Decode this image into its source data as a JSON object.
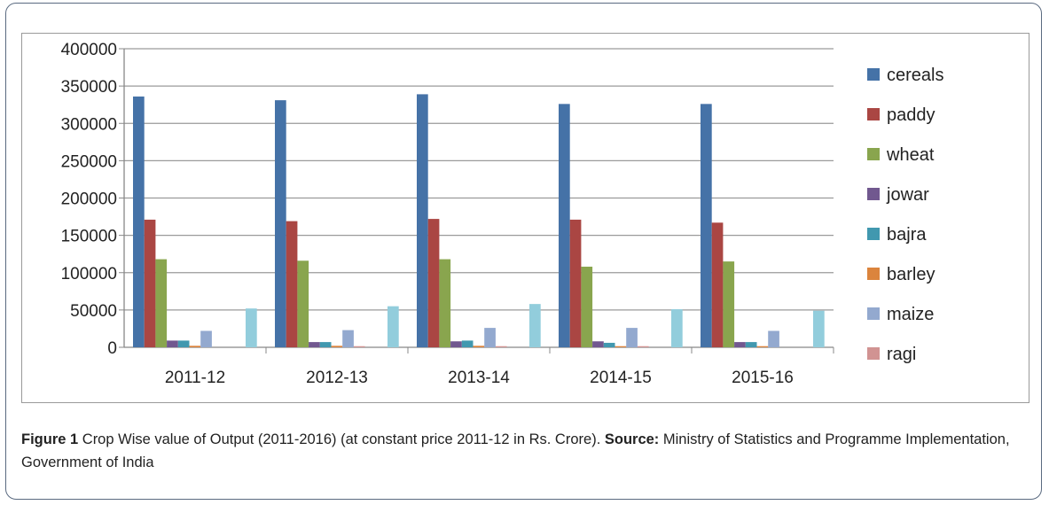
{
  "chart_data": {
    "type": "bar",
    "title": "",
    "xlabel": "",
    "ylabel": "",
    "ylim": [
      0,
      400000
    ],
    "yticks": [
      "0",
      "50000",
      "100000",
      "150000",
      "200000",
      "250000",
      "300000",
      "350000",
      "400000"
    ],
    "grid": true,
    "legend_position": "right",
    "categories": [
      "2011-12",
      "2012-13",
      "2013-14",
      "2014-15",
      "2015-16"
    ],
    "series": [
      {
        "name": "cereals",
        "color": "#4572a7",
        "values": [
          336000,
          331000,
          339000,
          326000,
          326000
        ],
        "in_legend": true
      },
      {
        "name": "paddy",
        "color": "#aa4643",
        "values": [
          171000,
          169000,
          172000,
          171000,
          167000
        ],
        "in_legend": true
      },
      {
        "name": "wheat",
        "color": "#89a54e",
        "values": [
          118000,
          116000,
          118000,
          108000,
          115000
        ],
        "in_legend": true
      },
      {
        "name": "jowar",
        "color": "#71588f",
        "values": [
          9000,
          7000,
          8000,
          8000,
          7000
        ],
        "in_legend": true
      },
      {
        "name": "bajra",
        "color": "#4198af",
        "values": [
          9000,
          7000,
          9000,
          6000,
          7000
        ],
        "in_legend": true
      },
      {
        "name": "barley",
        "color": "#db843d",
        "values": [
          2000,
          2000,
          2000,
          1500,
          1500
        ],
        "in_legend": true
      },
      {
        "name": "maize",
        "color": "#93a9cf",
        "values": [
          22000,
          23000,
          26000,
          26000,
          22000
        ],
        "in_legend": true
      },
      {
        "name": "ragi",
        "color": "#d19392",
        "values": [
          0,
          1500,
          1500,
          1500,
          0
        ],
        "in_legend": true
      },
      {
        "name": null,
        "color": "#b9cd96",
        "values": [
          0,
          0,
          0,
          0,
          0
        ],
        "in_legend": false
      },
      {
        "name": null,
        "color": "#a99bbd",
        "values": [
          0,
          0,
          0,
          0,
          0
        ],
        "in_legend": false
      },
      {
        "name": null,
        "color": "#92cddc",
        "values": [
          52000,
          55000,
          58000,
          51000,
          49000
        ],
        "in_legend": false
      }
    ]
  },
  "caption": {
    "label": "Figure 1",
    "text": " Crop Wise value of Output (2011-2016) (at constant price 2011-12 in Rs. Crore). ",
    "source_label": "Source:",
    "source_text": " Ministry of Statistics and Programme Implementation, Government of India"
  }
}
